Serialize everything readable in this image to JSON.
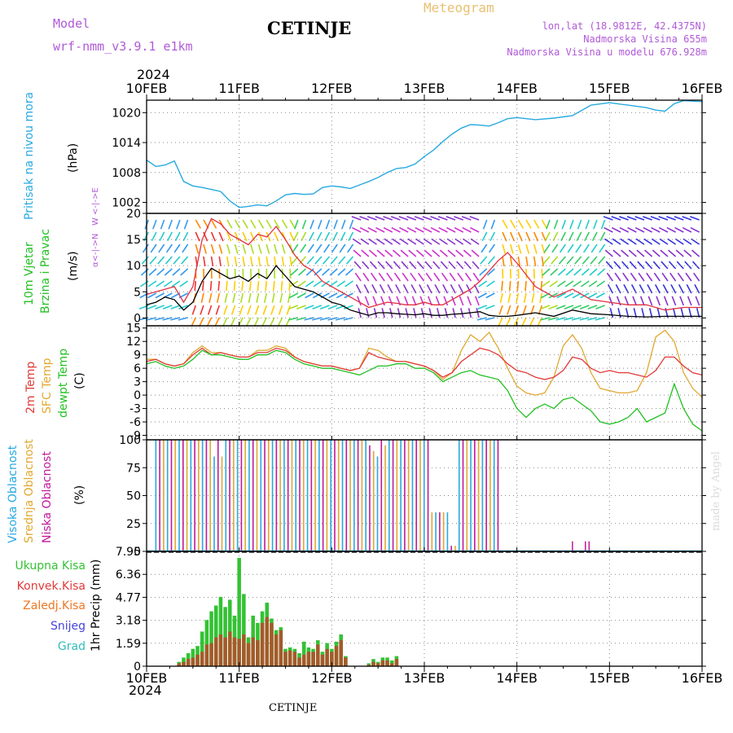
{
  "header": {
    "model_label": "Model",
    "model_name": "wrf-nmm_v3.9.1 e1km",
    "station": "CETINJE",
    "meteogram": "Meteogram",
    "lonlat": "lon,lat (18.9812E, 42.4375N)",
    "altitude": "Nadmorska Visina 655m",
    "model_altitude": "Nadmorska Visina u modelu 676.928m",
    "year_top": "2024",
    "year_bottom": "2024",
    "footer_station": "CETINJE",
    "credit": "made by Angel"
  },
  "colors": {
    "pressure": "#29a9e0",
    "wind_speed": "#000000",
    "gust": "#e03040",
    "t2m": "#e03a3a",
    "sfc": "#e0a830",
    "dew": "#22c022",
    "high_cloud": "#29a9e0",
    "mid_cloud": "#e0a830",
    "low_cloud": "#c0189a",
    "total_precip": "#33c233",
    "conv_precip": "#e03a3a",
    "frozen": "#ee7722",
    "snow": "#4444dd",
    "graupel": "#33bbbb",
    "model_text": "#b05ad8",
    "meteogram_text": "#e8c070"
  },
  "chart_data": [
    {
      "type": "line",
      "panel": "pressure",
      "ylabel": "Pritisak na nivou mora",
      "unit": "(hPa)",
      "xticks": [
        "10FEB",
        "11FEB",
        "12FEB",
        "13FEB",
        "14FEB",
        "15FEB",
        "16FEB"
      ],
      "yticks": [
        1002,
        1008,
        1014,
        1020
      ],
      "ylim": [
        999.8,
        1022.5
      ],
      "x_days": [
        0,
        0.1,
        0.2,
        0.3,
        0.4,
        0.5,
        0.6,
        0.7,
        0.8,
        0.9,
        1.0,
        1.1,
        1.2,
        1.3,
        1.4,
        1.5,
        1.6,
        1.7,
        1.8,
        1.9,
        2.0,
        2.1,
        2.2,
        2.3,
        2.4,
        2.5,
        2.6,
        2.7,
        2.8,
        2.9,
        3.0,
        3.1,
        3.2,
        3.3,
        3.4,
        3.5,
        3.6,
        3.7,
        3.8,
        3.9,
        4.0,
        4.2,
        4.4,
        4.6,
        4.8,
        5.0,
        5.2,
        5.4,
        5.5,
        5.6,
        5.7,
        5.8,
        5.9,
        6.0
      ],
      "series": [
        {
          "name": "Pritisak na nivou mora",
          "values": [
            1010.5,
            1009.2,
            1009.5,
            1010.3,
            1006.2,
            1005.3,
            1005.0,
            1004.6,
            1004.2,
            1002.3,
            1001.0,
            1001.2,
            1001.5,
            1001.3,
            1002.3,
            1003.5,
            1003.8,
            1003.6,
            1003.7,
            1005.0,
            1005.3,
            1005.1,
            1004.8,
            1005.5,
            1006.2,
            1007.0,
            1008.0,
            1008.8,
            1009.0,
            1009.7,
            1011.2,
            1012.5,
            1014.2,
            1015.7,
            1016.9,
            1017.6,
            1017.5,
            1017.3,
            1018.0,
            1018.8,
            1019.0,
            1018.6,
            1018.9,
            1019.4,
            1021.5,
            1022.0,
            1021.5,
            1021.0,
            1020.5,
            1020.3,
            1021.8,
            1022.4,
            1022.3,
            1022.2
          ]
        }
      ]
    },
    {
      "type": "line",
      "panel": "wind",
      "ylabel": "10m Vjetar Brzina i Pravac",
      "unit": "(m/s)",
      "compass": "W <-|-> E  S<-|->N",
      "yticks": [
        0,
        5,
        10,
        15,
        20
      ],
      "ylim": [
        -1.5,
        20
      ],
      "x_days": [
        0,
        0.1,
        0.2,
        0.3,
        0.4,
        0.5,
        0.6,
        0.7,
        0.8,
        0.9,
        1.0,
        1.1,
        1.2,
        1.3,
        1.4,
        1.5,
        1.6,
        1.7,
        1.8,
        1.9,
        2.0,
        2.1,
        2.2,
        2.3,
        2.4,
        2.5,
        2.6,
        2.7,
        2.8,
        2.9,
        3.0,
        3.1,
        3.2,
        3.3,
        3.4,
        3.5,
        3.6,
        3.7,
        3.8,
        3.9,
        4.0,
        4.2,
        4.4,
        4.6,
        4.8,
        5.0,
        5.2,
        5.4,
        5.6,
        5.8,
        6.0
      ],
      "series": [
        {
          "name": "10m Vjetar Brzina",
          "values": [
            2.5,
            3.0,
            4.0,
            3.5,
            1.5,
            3.0,
            7.0,
            9.5,
            8.5,
            7.5,
            8.0,
            7.0,
            8.5,
            7.5,
            10.0,
            8.0,
            6.0,
            5.5,
            5.0,
            4.0,
            3.0,
            2.5,
            1.5,
            1.0,
            0.5,
            1.0,
            1.0,
            0.8,
            0.7,
            0.6,
            0.8,
            0.5,
            0.5,
            0.7,
            0.8,
            1.0,
            1.2,
            0.5,
            0.3,
            0.3,
            0.5,
            1.0,
            0.3,
            1.5,
            0.8,
            0.6,
            0.3,
            0.2,
            0.3,
            0.3,
            0.3
          ]
        },
        {
          "name": "Udari",
          "values": [
            4.5,
            5.0,
            5.5,
            6.0,
            3.0,
            6.0,
            15.0,
            19.0,
            18.0,
            16.0,
            15.0,
            14.0,
            16.0,
            15.5,
            17.5,
            15.0,
            12.0,
            10.0,
            9.0,
            7.0,
            6.0,
            5.0,
            4.0,
            3.0,
            2.0,
            2.5,
            3.0,
            2.8,
            2.5,
            2.5,
            3.0,
            2.5,
            2.5,
            3.5,
            4.5,
            5.5,
            7.0,
            9.0,
            11.0,
            12.5,
            10.5,
            6.0,
            4.0,
            5.5,
            3.5,
            3.0,
            2.5,
            2.5,
            1.5,
            2.0,
            2.0
          ]
        }
      ]
    },
    {
      "type": "line",
      "panel": "temperature",
      "ylabels": [
        "2m Temp",
        "SFC Temp",
        "dewpt Temp"
      ],
      "unit": "(C)",
      "yticks": [
        -9,
        -6,
        -3,
        0,
        3,
        6,
        9,
        12,
        15
      ],
      "ylim": [
        -10,
        15.5
      ],
      "x_days": [
        0,
        0.1,
        0.2,
        0.3,
        0.4,
        0.5,
        0.6,
        0.7,
        0.8,
        0.9,
        1.0,
        1.1,
        1.2,
        1.3,
        1.4,
        1.5,
        1.6,
        1.7,
        1.8,
        1.9,
        2.0,
        2.1,
        2.2,
        2.3,
        2.4,
        2.5,
        2.6,
        2.7,
        2.8,
        2.9,
        3.0,
        3.1,
        3.2,
        3.3,
        3.4,
        3.5,
        3.6,
        3.7,
        3.8,
        3.9,
        4.0,
        4.1,
        4.2,
        4.3,
        4.4,
        4.5,
        4.6,
        4.7,
        4.8,
        4.9,
        5.0,
        5.1,
        5.2,
        5.3,
        5.4,
        5.5,
        5.6,
        5.7,
        5.8,
        5.9,
        6.0
      ],
      "series": [
        {
          "name": "2m Temp",
          "values": [
            7.5,
            8.0,
            7.0,
            6.5,
            7.0,
            9.0,
            10.5,
            9.0,
            9.5,
            9.0,
            8.5,
            8.5,
            9.5,
            9.5,
            10.5,
            10.0,
            8.5,
            7.5,
            7.0,
            6.5,
            6.5,
            6.0,
            5.5,
            6.0,
            9.5,
            8.5,
            8.0,
            7.5,
            7.5,
            7.0,
            6.5,
            5.5,
            4.0,
            5.0,
            7.5,
            9.0,
            10.5,
            10.0,
            9.0,
            7.0,
            5.5,
            5.0,
            4.0,
            3.5,
            4.0,
            5.5,
            8.5,
            8.0,
            6.0,
            5.0,
            5.5,
            5.0,
            5.0,
            4.5,
            4.0,
            5.5,
            8.5,
            8.5,
            6.5,
            5.0,
            4.5
          ]
        },
        {
          "name": "SFC Temp",
          "values": [
            8.0,
            8.0,
            7.0,
            6.5,
            7.0,
            9.5,
            11.0,
            9.5,
            9.5,
            9.0,
            8.5,
            8.5,
            10.0,
            10.0,
            11.0,
            10.5,
            8.5,
            7.5,
            7.0,
            6.5,
            6.5,
            6.0,
            5.5,
            6.0,
            10.5,
            10.0,
            8.5,
            7.5,
            7.5,
            7.0,
            6.5,
            5.5,
            3.5,
            5.0,
            10.0,
            13.5,
            12.0,
            14.0,
            10.5,
            6.0,
            2.0,
            0.5,
            0.0,
            0.5,
            4.0,
            11.0,
            13.5,
            10.5,
            5.0,
            1.5,
            1.0,
            0.5,
            0.5,
            1.0,
            5.0,
            13.0,
            14.5,
            12.0,
            5.0,
            1.5,
            -0.5
          ]
        },
        {
          "name": "dewpt Temp",
          "values": [
            7.0,
            7.5,
            6.5,
            6.0,
            6.5,
            8.0,
            10.0,
            9.0,
            9.0,
            8.5,
            8.0,
            8.0,
            9.0,
            9.0,
            10.0,
            9.5,
            8.0,
            7.0,
            6.5,
            6.0,
            6.0,
            5.5,
            5.0,
            4.5,
            5.5,
            6.5,
            6.5,
            7.0,
            7.0,
            6.0,
            6.0,
            5.0,
            3.0,
            4.0,
            5.0,
            5.5,
            4.5,
            4.0,
            3.5,
            1.0,
            -3.0,
            -5.0,
            -3.0,
            -2.0,
            -3.0,
            -1.0,
            -0.5,
            -2.0,
            -3.5,
            -6.0,
            -6.5,
            -6.0,
            -5.0,
            -3.0,
            -6.0,
            -5.0,
            -4.0,
            2.5,
            -3.0,
            -6.5,
            -8.0
          ]
        }
      ]
    },
    {
      "type": "bar",
      "panel": "clouds",
      "ylabels": [
        "Visoka Oblacnost",
        "Srednja Oblacnost",
        "Niska Oblacnost"
      ],
      "unit": "(%)",
      "yticks": [
        0,
        25,
        50,
        75,
        100
      ],
      "ylim": [
        0,
        100
      ],
      "note": "Overcast (100%) from 10FEB to about 13FEB 18h, mostly clear afterwards."
    },
    {
      "type": "bar",
      "panel": "precipitation",
      "ylabel": "1hr Precip (mm)",
      "legend": [
        "Ukupna Kisa",
        "Konvek.Kisa",
        "Zaledj.Kisa",
        "Snijeg",
        "Grad"
      ],
      "yticks": [
        "0",
        "1.59",
        "3.18",
        "4.77",
        "6.36",
        "7.95"
      ],
      "ylim": [
        0,
        7.95
      ],
      "x_days": [
        0.35,
        0.4,
        0.45,
        0.5,
        0.55,
        0.6,
        0.65,
        0.7,
        0.75,
        0.8,
        0.85,
        0.9,
        0.95,
        1.0,
        1.05,
        1.1,
        1.15,
        1.2,
        1.25,
        1.3,
        1.35,
        1.4,
        1.45,
        1.5,
        1.55,
        1.6,
        1.65,
        1.7,
        1.75,
        1.8,
        1.85,
        1.9,
        1.95,
        2.0,
        2.05,
        2.1,
        2.15,
        2.4,
        2.45,
        2.5,
        2.55,
        2.6,
        2.65,
        2.7
      ],
      "series": [
        {
          "name": "Ukupna Kisa",
          "values": [
            0.3,
            0.6,
            0.9,
            1.2,
            1.4,
            2.4,
            3.2,
            3.8,
            4.2,
            4.8,
            4.1,
            4.6,
            3.5,
            7.5,
            5.0,
            2.0,
            3.5,
            3.0,
            3.8,
            4.4,
            3.3,
            2.5,
            2.7,
            1.2,
            1.3,
            1.2,
            0.9,
            1.7,
            1.3,
            1.2,
            1.8,
            1.0,
            1.6,
            1.2,
            1.7,
            2.2,
            0.7,
            0.2,
            0.5,
            0.3,
            0.6,
            0.6,
            0.4,
            0.7
          ]
        },
        {
          "name": "Konvek.Kisa",
          "values": [
            0.2,
            0.3,
            0.5,
            0.6,
            0.8,
            1.0,
            1.5,
            1.6,
            2.0,
            2.2,
            2.0,
            2.4,
            2.0,
            1.9,
            2.2,
            1.6,
            2.0,
            1.8,
            3.0,
            3.4,
            3.0,
            2.2,
            2.5,
            1.0,
            1.1,
            1.0,
            0.6,
            0.8,
            1.0,
            1.0,
            1.5,
            0.8,
            1.2,
            1.0,
            1.4,
            1.8,
            0.6,
            0.1,
            0.3,
            0.2,
            0.4,
            0.4,
            0.2,
            0.5
          ]
        }
      ]
    }
  ]
}
